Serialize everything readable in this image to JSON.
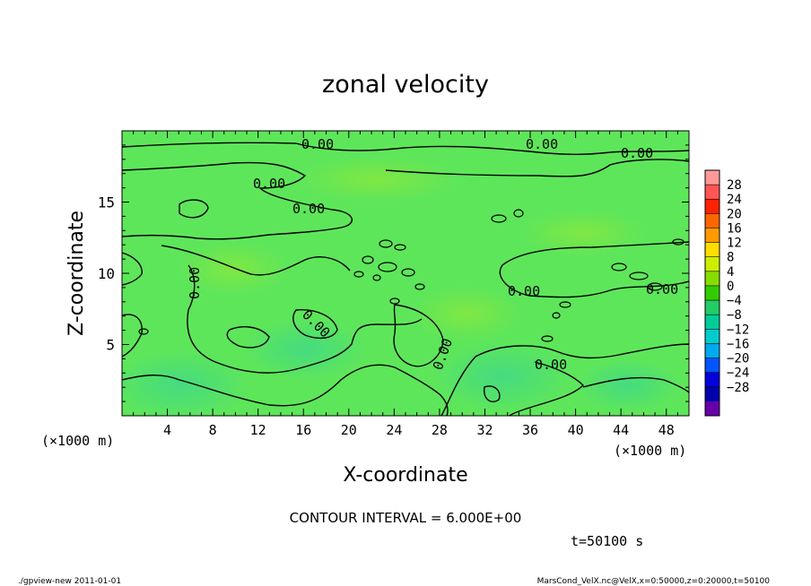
{
  "chart_data": {
    "type": "heatmap",
    "title": "zonal velocity",
    "xlabel": "X-coordinate",
    "ylabel": "Z-coordinate",
    "x_unit": "(×1000 m)",
    "y_unit": "(×1000 m)",
    "xlim": [
      0,
      50
    ],
    "ylim": [
      0,
      20
    ],
    "x_ticks": [
      "4",
      "8",
      "12",
      "16",
      "20",
      "24",
      "28",
      "32",
      "36",
      "40",
      "44",
      "48"
    ],
    "x_tick_values": [
      4,
      8,
      12,
      16,
      20,
      24,
      28,
      32,
      36,
      40,
      44,
      48
    ],
    "y_ticks": [
      "5",
      "10",
      "15"
    ],
    "y_tick_values": [
      5,
      10,
      15
    ],
    "colorbar": {
      "labels": [
        "28",
        "24",
        "20",
        "16",
        "12",
        "8",
        "4",
        "0",
        "−4",
        "−8",
        "−12",
        "−16",
        "−20",
        "−24",
        "−28"
      ],
      "colors": [
        "#ff9999",
        "#ff5555",
        "#ff2200",
        "#ff6600",
        "#ff9900",
        "#ffdd00",
        "#ccee00",
        "#88dd00",
        "#33cc00",
        "#22cc66",
        "#00cc99",
        "#00cccc",
        "#00aaee",
        "#0055ff",
        "#0000dd",
        "#0000aa",
        "#6600aa"
      ]
    },
    "contour_labels": [
      "0.00"
    ],
    "contour_interval": "CONTOUR INTERVAL = 6.000E+00",
    "time": "t=50100 s",
    "field_color": "#5ee65a",
    "grid": false
  },
  "footer": {
    "left": "./gpview-new   2011-01-01",
    "right": "MarsCond_VelX.nc@VelX,x=0:50000,z=0:20000,t=50100"
  }
}
